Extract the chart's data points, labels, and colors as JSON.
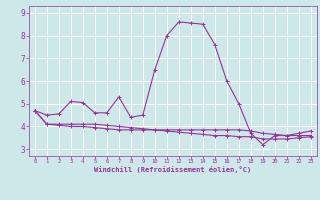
{
  "xlabel": "Windchill (Refroidissement éolien,°C)",
  "background_color": "#cce8e8",
  "grid_color": "#ffffff",
  "line_color": "#993399",
  "xlim": [
    -0.5,
    23.5
  ],
  "ylim": [
    2.7,
    9.3
  ],
  "yticks": [
    3,
    4,
    5,
    6,
    7,
    8,
    9
  ],
  "xticks": [
    0,
    1,
    2,
    3,
    4,
    5,
    6,
    7,
    8,
    9,
    10,
    11,
    12,
    13,
    14,
    15,
    16,
    17,
    18,
    19,
    20,
    21,
    22,
    23
  ],
  "line1_x": [
    0,
    1,
    2,
    3,
    4,
    5,
    6,
    7,
    8,
    9,
    10,
    11,
    12,
    13,
    14,
    15,
    16,
    17,
    18,
    19,
    20,
    21,
    22,
    23
  ],
  "line1_y": [
    4.7,
    4.5,
    4.55,
    5.1,
    5.05,
    4.6,
    4.6,
    5.3,
    4.4,
    4.5,
    6.5,
    8.0,
    8.6,
    8.55,
    8.5,
    7.6,
    6.0,
    5.0,
    3.7,
    3.2,
    3.6,
    3.6,
    3.7,
    3.8
  ],
  "line2_x": [
    0,
    1,
    2,
    3,
    4,
    5,
    6,
    7,
    8,
    9,
    10,
    11,
    12,
    13,
    14,
    15,
    16,
    17,
    18,
    19,
    20,
    21,
    22,
    23
  ],
  "line2_y": [
    4.7,
    4.1,
    4.05,
    4.0,
    4.0,
    3.95,
    3.9,
    3.85,
    3.85,
    3.85,
    3.85,
    3.85,
    3.85,
    3.85,
    3.85,
    3.85,
    3.85,
    3.85,
    3.8,
    3.7,
    3.65,
    3.6,
    3.6,
    3.6
  ],
  "line3_x": [
    0,
    1,
    2,
    3,
    4,
    5,
    6,
    7,
    8,
    9,
    10,
    11,
    12,
    13,
    14,
    15,
    16,
    17,
    18,
    19,
    20,
    21,
    22,
    23
  ],
  "line3_y": [
    4.7,
    4.1,
    4.1,
    4.1,
    4.1,
    4.1,
    4.05,
    4.0,
    3.95,
    3.9,
    3.85,
    3.8,
    3.75,
    3.7,
    3.65,
    3.6,
    3.6,
    3.55,
    3.55,
    3.45,
    3.45,
    3.45,
    3.5,
    3.55
  ]
}
